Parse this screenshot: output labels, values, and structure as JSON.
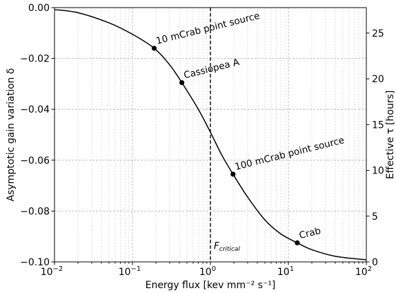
{
  "chart_data": {
    "type": "line",
    "xscale": "log",
    "xlim": [
      0.01,
      100
    ],
    "ylim": [
      -0.1,
      0.0
    ],
    "y2lim": [
      0,
      27.78
    ],
    "xlabel": "Energy flux [kev mm⁻² s⁻¹]",
    "ylabel": "Asymptotic gain variation δ",
    "y2label": "Effective τ [hours]",
    "x_ticks": [
      0.01,
      0.1,
      1,
      10,
      100
    ],
    "x_tick_mantissa": "10",
    "x_tick_exponents": [
      "−2",
      "−1",
      "0",
      "1",
      "2"
    ],
    "y_ticks": [
      0.0,
      -0.02,
      -0.04,
      -0.06,
      -0.08,
      -0.1
    ],
    "y_tick_labels": [
      "0.00",
      "−0.02",
      "−0.04",
      "−0.06",
      "−0.08",
      "−0.10"
    ],
    "y2_ticks": [
      0,
      5,
      10,
      15,
      20,
      25
    ],
    "y2_tick_labels": [
      "0",
      "5",
      "10",
      "15",
      "20",
      "25"
    ],
    "grid": true,
    "series": [
      {
        "x": [
          0.01,
          0.02,
          0.05,
          0.1,
          0.19,
          0.3,
          0.43,
          0.7,
          1.0,
          1.4,
          1.95,
          3.0,
          5.0,
          8.0,
          13.0,
          20.0,
          40.0,
          100.0
        ],
        "y": [
          -0.0008,
          -0.002,
          -0.006,
          -0.0105,
          -0.016,
          -0.0225,
          -0.0295,
          -0.04,
          -0.049,
          -0.058,
          -0.0655,
          -0.0745,
          -0.0835,
          -0.089,
          -0.0925,
          -0.0952,
          -0.0978,
          -0.0992
        ]
      }
    ],
    "points": [
      {
        "x": 0.19,
        "y": -0.016,
        "label": "10 mCrab point source"
      },
      {
        "x": 0.43,
        "y": -0.0295,
        "label": "Cassiopea A"
      },
      {
        "x": 1.95,
        "y": -0.0655,
        "label": "100 mCrab point source"
      },
      {
        "x": 13.0,
        "y": -0.0925,
        "label": "Crab"
      }
    ],
    "vline": {
      "x": 1.0,
      "label_main": "F",
      "label_sub": "critical"
    }
  }
}
